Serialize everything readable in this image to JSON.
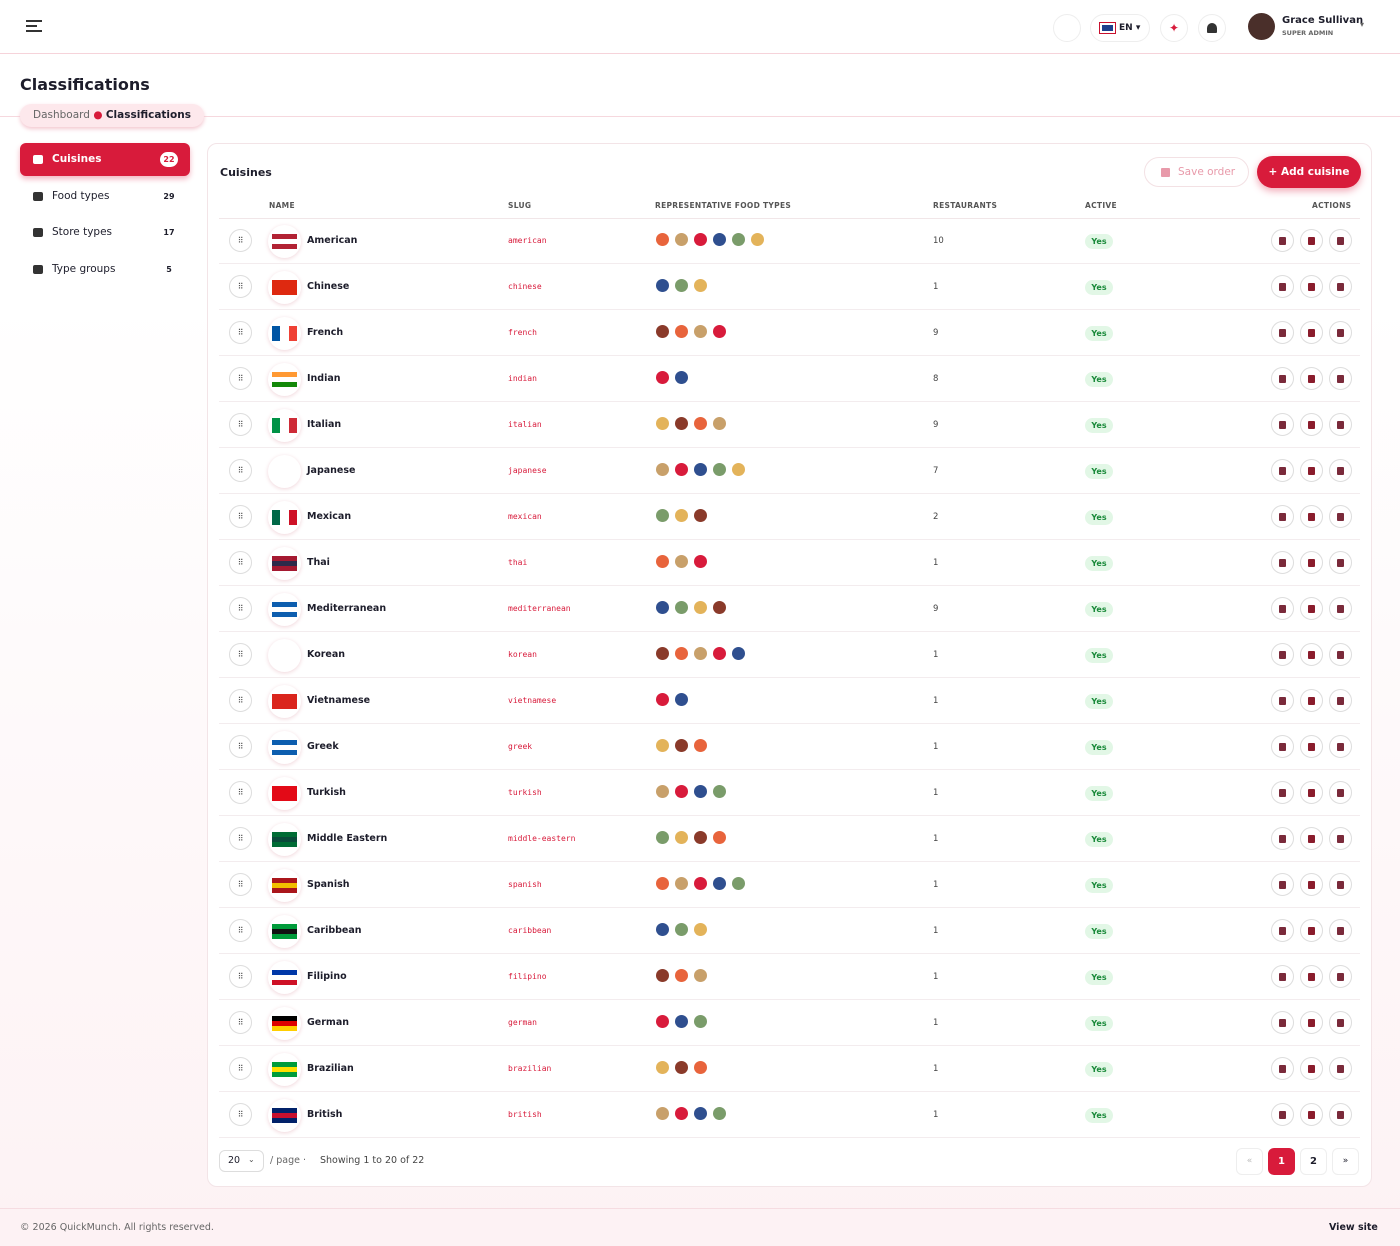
{
  "header": {
    "language": "EN",
    "user_name": "Grace Sullivan",
    "user_role": "SUPER ADMIN"
  },
  "page": {
    "title": "Classifications",
    "breadcrumb": [
      "Dashboard",
      "Classifications"
    ]
  },
  "sidebar": {
    "items": [
      {
        "label": "Cuisines",
        "count": 22
      },
      {
        "label": "Food types",
        "count": 29
      },
      {
        "label": "Store types",
        "count": 17
      },
      {
        "label": "Type groups",
        "count": 5
      }
    ]
  },
  "card": {
    "title": "Cuisines",
    "save_button": "Save order",
    "add_button": "+ Add cuisine"
  },
  "table": {
    "columns": [
      "NAME",
      "SLUG",
      "REPRESENTATIVE FOOD TYPES",
      "RESTAURANTS",
      "ACTIVE",
      "ACTIONS"
    ],
    "rows": [
      {
        "name": "American",
        "slug": "american",
        "restaurants": 10,
        "active": "Yes"
      },
      {
        "name": "Chinese",
        "slug": "chinese",
        "restaurants": 1,
        "active": "Yes"
      },
      {
        "name": "French",
        "slug": "french",
        "restaurants": 9,
        "active": "Yes"
      },
      {
        "name": "Indian",
        "slug": "indian",
        "restaurants": 8,
        "active": "Yes"
      },
      {
        "name": "Italian",
        "slug": "italian",
        "restaurants": 9,
        "active": "Yes"
      },
      {
        "name": "Japanese",
        "slug": "japanese",
        "restaurants": 7,
        "active": "Yes"
      },
      {
        "name": "Mexican",
        "slug": "mexican",
        "restaurants": 2,
        "active": "Yes"
      },
      {
        "name": "Thai",
        "slug": "thai",
        "restaurants": 1,
        "active": "Yes"
      },
      {
        "name": "Mediterranean",
        "slug": "mediterranean",
        "restaurants": 9,
        "active": "Yes"
      },
      {
        "name": "Korean",
        "slug": "korean",
        "restaurants": 1,
        "active": "Yes"
      },
      {
        "name": "Vietnamese",
        "slug": "vietnamese",
        "restaurants": 1,
        "active": "Yes"
      },
      {
        "name": "Greek",
        "slug": "greek",
        "restaurants": 1,
        "active": "Yes"
      },
      {
        "name": "Turkish",
        "slug": "turkish",
        "restaurants": 1,
        "active": "Yes"
      },
      {
        "name": "Middle Eastern",
        "slug": "middle-eastern",
        "restaurants": 1,
        "active": "Yes"
      },
      {
        "name": "Spanish",
        "slug": "spanish",
        "restaurants": 1,
        "active": "Yes"
      },
      {
        "name": "Caribbean",
        "slug": "caribbean",
        "restaurants": 1,
        "active": "Yes"
      },
      {
        "name": "Filipino",
        "slug": "filipino",
        "restaurants": 1,
        "active": "Yes"
      },
      {
        "name": "German",
        "slug": "german",
        "restaurants": 1,
        "active": "Yes"
      },
      {
        "name": "Brazilian",
        "slug": "brazilian",
        "restaurants": 1,
        "active": "Yes"
      },
      {
        "name": "British",
        "slug": "british",
        "restaurants": 1,
        "active": "Yes"
      }
    ]
  },
  "pagination": {
    "per_page": 20,
    "per_page_suffix": "/ page ·",
    "summary": "Showing 1 to 20 of 22",
    "prev": "«",
    "pages": [
      1,
      2
    ],
    "next": "»"
  },
  "footer": {
    "copyright": "© 2026 QuickMunch. All rights reserved.",
    "link": "View site"
  }
}
